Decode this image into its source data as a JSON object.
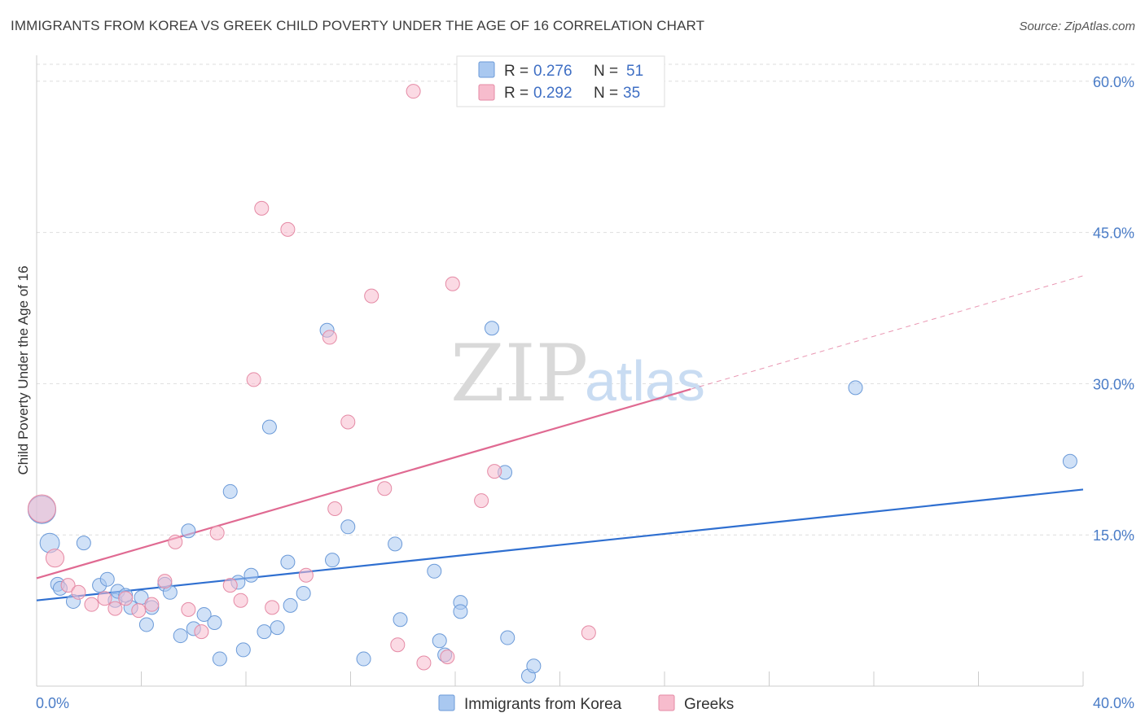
{
  "header": {
    "title": "IMMIGRANTS FROM KOREA VS GREEK CHILD POVERTY UNDER THE AGE OF 16 CORRELATION CHART",
    "source": "Source: ZipAtlas.com"
  },
  "watermark": {
    "zip": "ZIP",
    "atlas": "atlas"
  },
  "legend": {
    "rows": [
      {
        "r_label": "R =",
        "r_value": "0.276",
        "n_label": "N =",
        "n_value": "51"
      },
      {
        "r_label": "R =",
        "r_value": "0.292",
        "n_label": "N =",
        "n_value": "35"
      }
    ]
  },
  "chart_data": {
    "type": "scatter",
    "title": "IMMIGRANTS FROM KOREA VS GREEK CHILD POVERTY UNDER THE AGE OF 16 CORRELATION CHART",
    "xlabel": "",
    "ylabel": "Child Poverty Under the Age of 16",
    "xlim": [
      0,
      40
    ],
    "ylim": [
      0,
      62
    ],
    "x_tick_labels": [
      {
        "value": 0,
        "label": "0.0%"
      },
      {
        "value": 40,
        "label": "40.0%"
      }
    ],
    "y_tick_labels": [
      {
        "value": 15,
        "label": "15.0%"
      },
      {
        "value": 30,
        "label": "30.0%"
      },
      {
        "value": 45,
        "label": "45.0%"
      },
      {
        "value": 60,
        "label": "60.0%"
      }
    ],
    "grid": true,
    "legend_position": "top-center",
    "series": [
      {
        "name": "Immigrants from Korea",
        "color": "#a9c8f0",
        "stroke": "#6b9ad8",
        "line_color": "#2f6fd0",
        "r": 0.276,
        "n": 51,
        "trend": {
          "x": [
            0,
            40
          ],
          "y": [
            8.5,
            19.5
          ],
          "dashed_from": null
        },
        "points": [
          [
            0.2,
            17.5,
            2.0
          ],
          [
            0.5,
            14.2,
            1.4
          ],
          [
            0.8,
            10.1,
            1
          ],
          [
            0.9,
            9.7,
            1
          ],
          [
            1.4,
            8.4,
            1
          ],
          [
            1.8,
            14.2,
            1
          ],
          [
            2.4,
            10.0,
            1
          ],
          [
            2.7,
            10.6,
            1
          ],
          [
            3.0,
            8.5,
            1
          ],
          [
            3.1,
            9.4,
            1
          ],
          [
            3.4,
            9.0,
            1
          ],
          [
            3.6,
            7.8,
            1
          ],
          [
            4.0,
            8.8,
            1
          ],
          [
            4.2,
            6.1,
            1
          ],
          [
            4.4,
            7.8,
            1
          ],
          [
            4.9,
            10.1,
            1
          ],
          [
            5.1,
            9.3,
            1
          ],
          [
            5.5,
            5.0,
            1
          ],
          [
            5.8,
            15.4,
            1
          ],
          [
            6.0,
            5.7,
            1
          ],
          [
            6.4,
            7.1,
            1
          ],
          [
            6.8,
            6.3,
            1
          ],
          [
            7.0,
            2.7,
            1
          ],
          [
            7.4,
            19.3,
            1
          ],
          [
            7.7,
            10.3,
            1
          ],
          [
            7.9,
            3.6,
            1
          ],
          [
            8.2,
            11.0,
            1
          ],
          [
            8.7,
            5.4,
            1
          ],
          [
            8.9,
            25.7,
            1
          ],
          [
            9.2,
            5.8,
            1
          ],
          [
            9.6,
            12.3,
            1
          ],
          [
            9.7,
            8.0,
            1
          ],
          [
            10.2,
            9.2,
            1
          ],
          [
            11.1,
            35.3,
            1
          ],
          [
            11.3,
            12.5,
            1
          ],
          [
            11.9,
            15.8,
            1
          ],
          [
            12.5,
            2.7,
            1
          ],
          [
            13.7,
            14.1,
            1
          ],
          [
            13.9,
            6.6,
            1
          ],
          [
            15.2,
            11.4,
            1
          ],
          [
            15.4,
            4.5,
            1
          ],
          [
            15.6,
            3.1,
            1
          ],
          [
            16.2,
            8.3,
            1
          ],
          [
            16.2,
            7.4,
            1
          ],
          [
            17.4,
            35.5,
            1
          ],
          [
            17.9,
            21.2,
            1
          ],
          [
            18.0,
            4.8,
            1
          ],
          [
            18.8,
            1.0,
            1
          ],
          [
            19.0,
            2.0,
            1
          ],
          [
            31.3,
            29.6,
            1
          ],
          [
            39.5,
            22.3,
            1
          ]
        ]
      },
      {
        "name": "Greeks",
        "color": "#f7bccd",
        "stroke": "#e58aa5",
        "line_color": "#e06a92",
        "r": 0.292,
        "n": 35,
        "trend": {
          "x": [
            0,
            40
          ],
          "y": [
            10.7,
            40.7
          ],
          "dashed_from": 25
        },
        "points": [
          [
            0.2,
            17.6,
            2.0
          ],
          [
            0.7,
            12.7,
            1.3
          ],
          [
            1.2,
            10.0,
            1
          ],
          [
            1.6,
            9.3,
            1
          ],
          [
            2.1,
            8.1,
            1
          ],
          [
            2.6,
            8.7,
            1
          ],
          [
            3.0,
            7.7,
            1
          ],
          [
            3.4,
            8.7,
            1
          ],
          [
            3.9,
            7.5,
            1
          ],
          [
            4.4,
            8.1,
            1
          ],
          [
            4.9,
            10.4,
            1
          ],
          [
            5.3,
            14.3,
            1
          ],
          [
            5.8,
            7.6,
            1
          ],
          [
            6.3,
            5.4,
            1
          ],
          [
            6.9,
            15.2,
            1
          ],
          [
            7.4,
            10.0,
            1
          ],
          [
            7.8,
            8.5,
            1
          ],
          [
            8.3,
            30.4,
            1
          ],
          [
            8.6,
            47.4,
            1
          ],
          [
            9.0,
            7.8,
            1
          ],
          [
            9.6,
            45.3,
            1
          ],
          [
            10.3,
            11.0,
            1
          ],
          [
            11.2,
            34.6,
            1
          ],
          [
            11.4,
            17.6,
            1
          ],
          [
            11.9,
            26.2,
            1
          ],
          [
            12.8,
            38.7,
            1
          ],
          [
            13.3,
            19.6,
            1
          ],
          [
            13.8,
            4.1,
            1
          ],
          [
            14.4,
            59.0,
            1
          ],
          [
            14.8,
            2.3,
            1
          ],
          [
            15.7,
            2.9,
            1
          ],
          [
            15.9,
            39.9,
            1
          ],
          [
            17.0,
            18.4,
            1
          ],
          [
            17.5,
            21.3,
            1
          ],
          [
            21.1,
            5.3,
            1
          ]
        ]
      }
    ]
  }
}
